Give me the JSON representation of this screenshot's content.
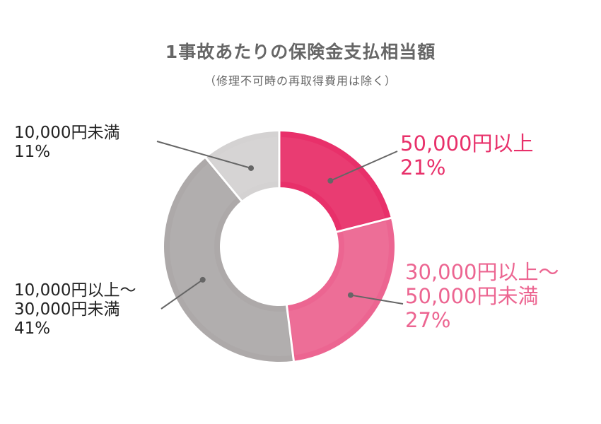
{
  "chart_data": {
    "type": "pie",
    "donut": true,
    "title": "1事故あたりの保険金支払相当額",
    "subtitle": "（修理不可時の再取得費用は除く）",
    "slices": [
      {
        "label_lines": [
          "50,000円以上",
          "21%"
        ],
        "label": "50,000円以上",
        "value": 21,
        "color": "#e8306a",
        "text_color": "#e8306a"
      },
      {
        "label_lines": [
          "30,000円以上～",
          "50,000円未満",
          "27%"
        ],
        "label": "30,000円以上～50,000円未満",
        "value": 27,
        "color": "#ec6591",
        "text_color": "#ec6591"
      },
      {
        "label_lines": [
          "10,000円以上～",
          "30,000円未満",
          "41%"
        ],
        "label": "10,000円以上～30,000円未満",
        "value": 41,
        "color": "#ada9a9",
        "text_color": "#222222"
      },
      {
        "label_lines": [
          "10,000円未満",
          "11%"
        ],
        "label": "10,000円未満",
        "value": 11,
        "color": "#d4d2d2",
        "text_color": "#222222"
      }
    ],
    "start": "12 o'clock",
    "direction": "clockwise",
    "legend": "none"
  }
}
